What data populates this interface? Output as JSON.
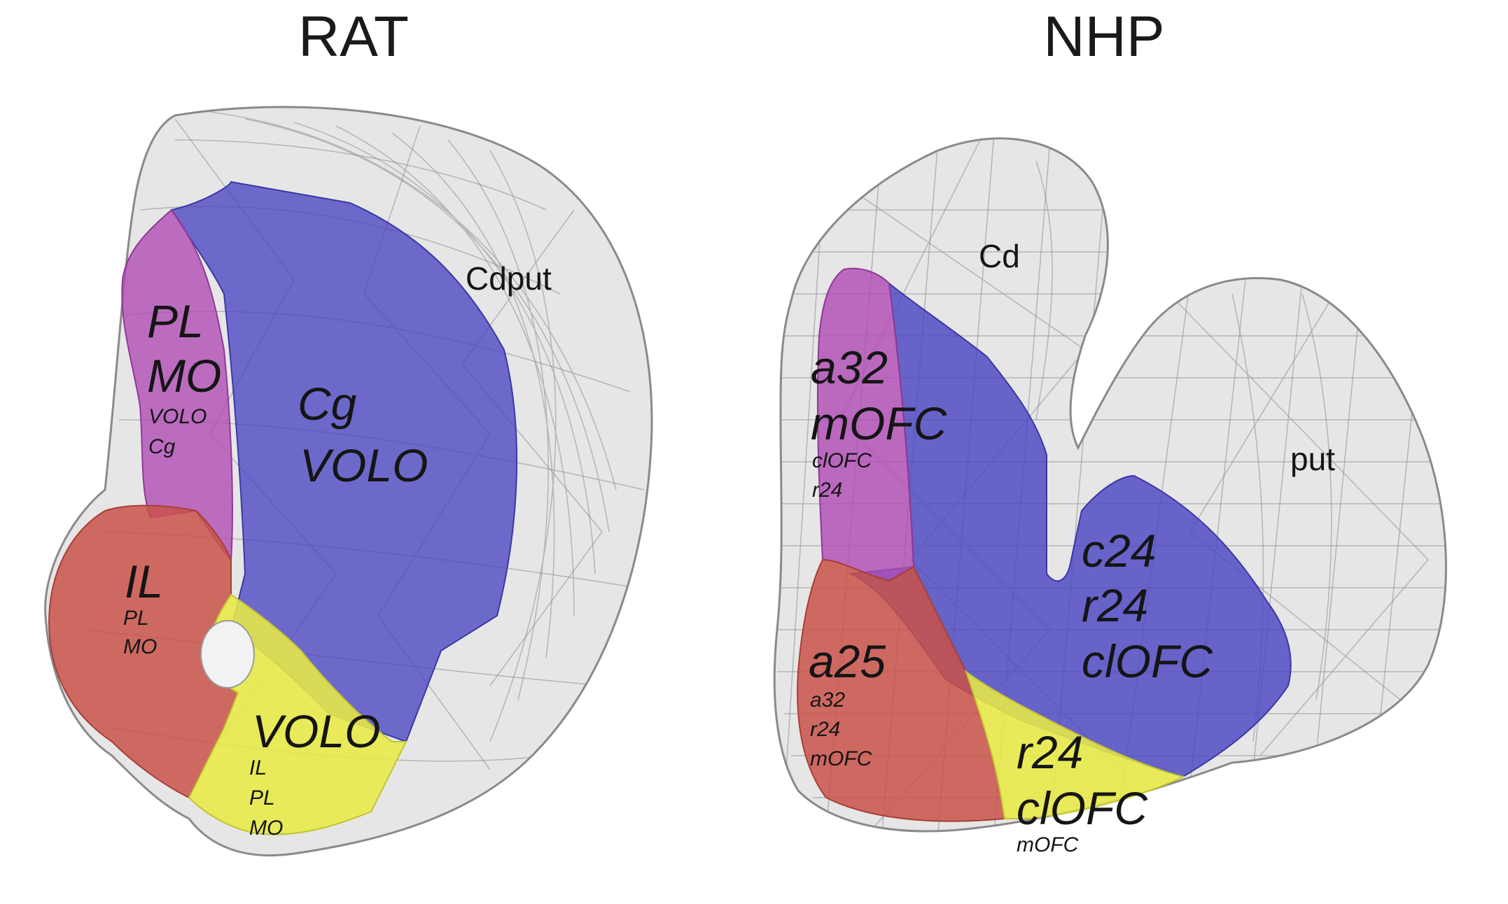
{
  "panels": [
    {
      "title": "RAT",
      "structure_label": "Cdput",
      "regions": [
        {
          "name": "PL",
          "main": "PL",
          "main2": "MO",
          "sub": [
            "VOLO",
            "Cg"
          ],
          "color": "#b04db5"
        },
        {
          "name": "Cg",
          "main": "Cg",
          "main2": "VOLO",
          "sub": [],
          "color": "#4a45c2"
        },
        {
          "name": "IL",
          "main": "IL",
          "main2": "",
          "sub": [
            "PL",
            "MO"
          ],
          "color": "#c9524a"
        },
        {
          "name": "VOLO",
          "main": "VOLO",
          "main2": "",
          "sub": [
            "IL",
            "PL",
            "MO"
          ],
          "color": "#e8ea45"
        }
      ]
    },
    {
      "title": "NHP",
      "structure_labels": [
        "Cd",
        "put"
      ],
      "regions": [
        {
          "name": "a32",
          "main": "a32",
          "main2": "mOFC",
          "sub": [
            "clOFC",
            "r24"
          ],
          "color": "#b04db5"
        },
        {
          "name": "c24",
          "main": "c24",
          "main2": "r24",
          "main3": "clOFC",
          "sub": [],
          "color": "#4a45c2"
        },
        {
          "name": "a25",
          "main": "a25",
          "main2": "",
          "sub": [
            "a32",
            "r24",
            "mOFC"
          ],
          "color": "#c9524a"
        },
        {
          "name": "r24",
          "main": "r24",
          "main2": "clOFC",
          "sub": [
            "mOFC"
          ],
          "color": "#e8ea45"
        }
      ]
    }
  ],
  "colors": {
    "mesh": "#dedede",
    "mesh_stroke": "#8a8a8a",
    "magenta": "#b04db5",
    "blue": "#4a45c2",
    "red": "#c9524a",
    "yellow": "#e8ea45"
  }
}
